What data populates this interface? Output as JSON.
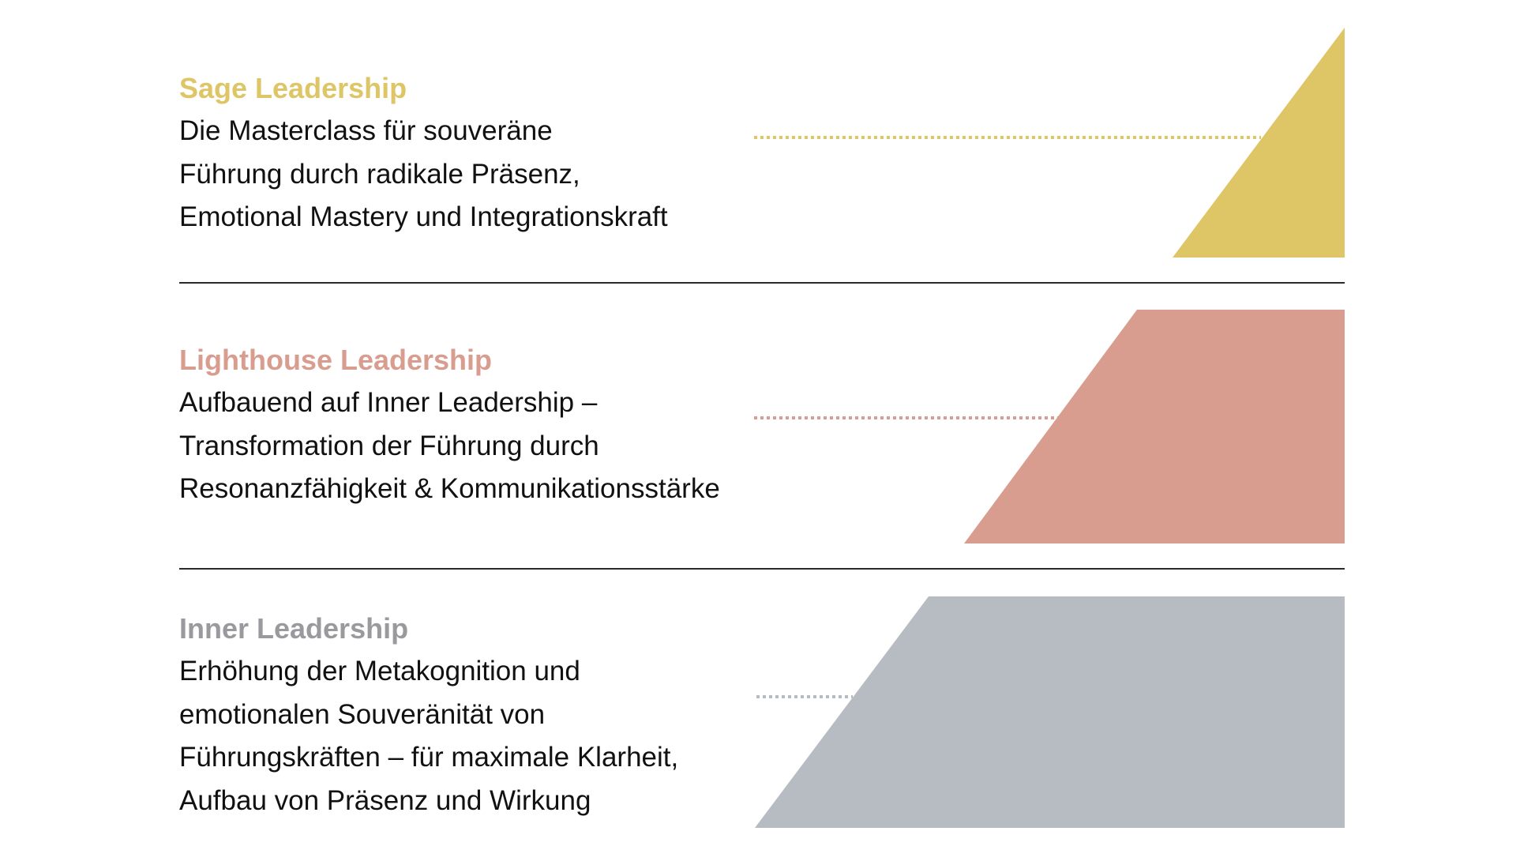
{
  "colors": {
    "sage": "#DEC566",
    "lighthouse": "#D99D90",
    "inner": "#B7BCC3",
    "text": "#111111",
    "separator": "#2a2a2a"
  },
  "tiers": [
    {
      "title": "Sage Leadership",
      "lines": [
        "Die Masterclass für souveräne",
        "Führung durch radikale Präsenz,",
        "Emotional Mastery und Integrationskraft"
      ]
    },
    {
      "title": "Lighthouse Leadership",
      "lines": [
        "Aufbauend auf Inner Leadership –",
        "Transformation der Führung durch",
        "Resonanzfähigkeit & Kommunikationsstärke"
      ]
    },
    {
      "title": "Inner Leadership",
      "lines": [
        "Erhöhung der Metakognition und",
        "emotionalen Souveränität von",
        "Führungskräften  – für maximale Klarheit,",
        "Aufbau von Präsenz und Wirkung"
      ]
    }
  ]
}
